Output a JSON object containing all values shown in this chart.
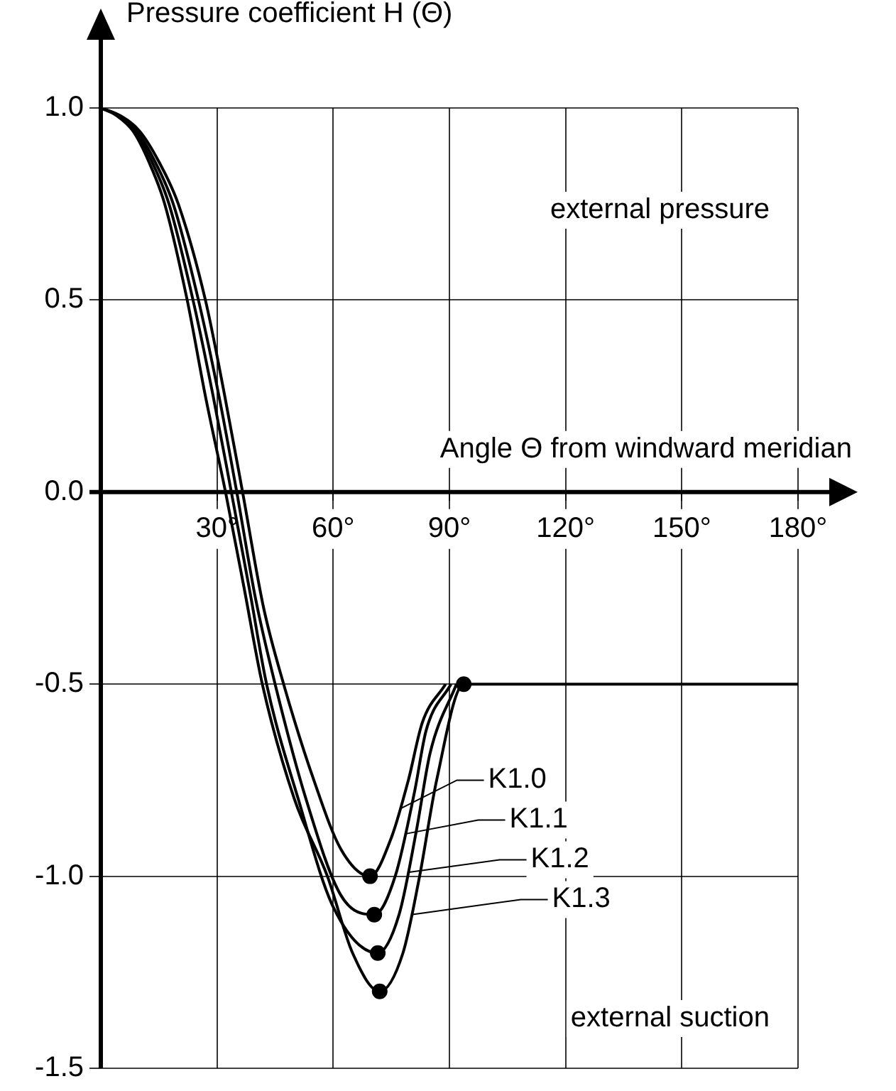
{
  "chart_data": {
    "type": "line",
    "ylabel": "Pressure coefficient H (Θ)",
    "xlabel": "Angle Θ from windward meridian",
    "xlim": [
      0,
      180
    ],
    "xticks": [
      {
        "value": 0,
        "label": null
      },
      {
        "value": 30,
        "label": "30°"
      },
      {
        "value": 60,
        "label": "60°"
      },
      {
        "value": 90,
        "label": "90°"
      },
      {
        "value": 120,
        "label": "120°"
      },
      {
        "value": 150,
        "label": "150°"
      },
      {
        "value": 180,
        "label": "180°"
      }
    ],
    "ylim": [
      -1.5,
      1.0
    ],
    "yticks": [
      {
        "value": 1.0,
        "label": "1.0"
      },
      {
        "value": 0.5,
        "label": "0.5"
      },
      {
        "value": 0,
        "label": "0.0"
      },
      {
        "value": -0.5,
        "label": "-0.5"
      },
      {
        "value": -1.0,
        "label": "-1.0"
      },
      {
        "value": -1.5,
        "label": "-1.5"
      }
    ],
    "grid": true,
    "legend": "center",
    "marker": "none",
    "line_style": "solid",
    "annotations": [
      "external pressure",
      "external suction"
    ],
    "series": [
      {
        "name": "K1.0",
        "color": "#000000",
        "x": [
          0,
          5,
          10,
          15,
          20,
          27,
          32,
          36.6,
          42,
          47.2,
          55,
          62,
          69.5,
          75,
          79.4,
          83,
          89
        ],
        "values": [
          1,
          0.98,
          0.94,
          0.86,
          0.75,
          0.5,
          0.25,
          0,
          -0.3,
          -0.5,
          -0.75,
          -0.93,
          -1.0,
          -0.9,
          -0.75,
          -0.6,
          -0.5
        ]
      },
      {
        "name": "K1.1",
        "color": "#000000",
        "x": [
          0,
          4.7,
          9.3,
          14,
          18.7,
          25.2,
          30.5,
          35.1,
          40,
          45,
          53,
          62,
          70.6,
          76,
          81,
          84,
          90.4
        ],
        "values": [
          1,
          0.98,
          0.94,
          0.86,
          0.75,
          0.5,
          0.25,
          0,
          -0.28,
          -0.5,
          -0.8,
          -1.05,
          -1.1,
          -1.0,
          -0.78,
          -0.62,
          -0.5
        ]
      },
      {
        "name": "K1.2",
        "color": "#000000",
        "x": [
          0,
          4.4,
          8.8,
          13.2,
          17.6,
          23.8,
          29,
          33.7,
          38.5,
          42.8,
          51,
          60,
          71.5,
          77,
          81.5,
          85,
          91.8
        ],
        "values": [
          1,
          0.98,
          0.94,
          0.86,
          0.75,
          0.5,
          0.25,
          0,
          -0.26,
          -0.5,
          -0.8,
          -1.08,
          -1.2,
          -1.1,
          -0.88,
          -0.68,
          -0.5
        ]
      },
      {
        "name": "K1.3",
        "color": "#000000",
        "x": [
          0,
          4.1,
          8.3,
          12.4,
          16.5,
          22.3,
          27,
          32.2,
          37,
          41.7,
          50,
          58.5,
          65,
          72,
          78,
          82.3,
          86.7,
          93.7,
          180
        ],
        "values": [
          1,
          0.98,
          0.94,
          0.86,
          0.75,
          0.5,
          0.25,
          0,
          -0.25,
          -0.5,
          -0.8,
          -1.0,
          -1.2,
          -1.3,
          -1.2,
          -1.0,
          -0.75,
          -0.5,
          -0.5
        ]
      },
      {
        "type": "scatter",
        "marker": "circle",
        "color": "#000000",
        "x": [
          69.5,
          70.6,
          71.5,
          72,
          89,
          90.4,
          91.8,
          93.7
        ],
        "values": [
          -1.0,
          -1.1,
          -1.2,
          -1.3,
          null,
          null,
          null,
          -0.5
        ]
      }
    ]
  }
}
